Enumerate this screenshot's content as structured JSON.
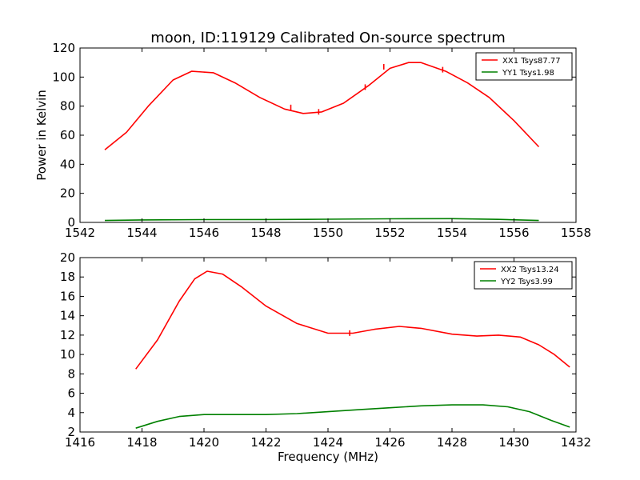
{
  "chart_data": [
    {
      "type": "line",
      "title": "moon, ID:119129 Calibrated On-source spectrum",
      "xlabel": "",
      "ylabel": "Power in Kelvin",
      "xlim": [
        1542,
        1558
      ],
      "ylim": [
        0,
        120
      ],
      "xticks": [
        "1542",
        "1544",
        "1546",
        "1548",
        "1550",
        "1552",
        "1554",
        "1556",
        "1558"
      ],
      "yticks": [
        "0",
        "20",
        "40",
        "60",
        "80",
        "100",
        "120"
      ],
      "grid": false,
      "legend_position": "top-right",
      "series": [
        {
          "name": "XX1 Tsys87.77",
          "color": "#ff0000",
          "x": [
            1542.8,
            1543.5,
            1544.2,
            1545.0,
            1545.6,
            1546.3,
            1547.0,
            1547.8,
            1548.6,
            1549.2,
            1549.8,
            1550.5,
            1551.3,
            1552.0,
            1552.6,
            1553.0,
            1553.8,
            1554.5,
            1555.2,
            1556.0,
            1556.8
          ],
          "y": [
            50,
            62,
            80,
            98,
            104,
            103,
            96,
            86,
            78,
            75,
            76,
            82,
            94,
            106,
            110,
            110,
            104,
            96,
            86,
            70,
            52
          ],
          "spikes": [
            {
              "x": 1548.8,
              "y": 81
            },
            {
              "x": 1549.7,
              "y": 78
            },
            {
              "x": 1551.2,
              "y": 95
            },
            {
              "x": 1551.8,
              "y": 109
            },
            {
              "x": 1553.7,
              "y": 107
            }
          ]
        },
        {
          "name": "YY1 Tsys1.98",
          "color": "#008000",
          "x": [
            1542.8,
            1544.0,
            1546.0,
            1548.0,
            1550.0,
            1552.0,
            1554.0,
            1555.5,
            1556.8
          ],
          "y": [
            1.3,
            1.7,
            1.9,
            2.0,
            2.2,
            2.5,
            2.6,
            2.1,
            1.3
          ]
        }
      ]
    },
    {
      "type": "line",
      "title": "",
      "xlabel": "Frequency (MHz)",
      "ylabel": "",
      "xlim": [
        1416,
        1432
      ],
      "ylim": [
        2,
        20
      ],
      "xticks": [
        "1416",
        "1418",
        "1420",
        "1422",
        "1424",
        "1426",
        "1428",
        "1430",
        "1432"
      ],
      "yticks": [
        "2",
        "4",
        "6",
        "8",
        "10",
        "12",
        "14",
        "16",
        "18",
        "20"
      ],
      "grid": false,
      "legend_position": "top-right",
      "series": [
        {
          "name": "XX2 Tsys13.24",
          "color": "#ff0000",
          "x": [
            1417.8,
            1418.5,
            1419.2,
            1419.7,
            1420.1,
            1420.6,
            1421.2,
            1422.0,
            1423.0,
            1424.0,
            1424.8,
            1425.5,
            1426.3,
            1427.0,
            1428.0,
            1428.8,
            1429.5,
            1430.2,
            1430.8,
            1431.3,
            1431.8
          ],
          "y": [
            8.5,
            11.5,
            15.5,
            17.8,
            18.6,
            18.3,
            17.0,
            15.0,
            13.2,
            12.2,
            12.2,
            12.6,
            12.9,
            12.7,
            12.1,
            11.9,
            12.0,
            11.8,
            11.0,
            10.0,
            8.7
          ],
          "spikes": [
            {
              "x": 1424.7,
              "y": 12.5
            }
          ]
        },
        {
          "name": "YY2 Tsys3.99",
          "color": "#008000",
          "x": [
            1417.8,
            1418.5,
            1419.2,
            1420.0,
            1421.0,
            1422.0,
            1423.0,
            1424.0,
            1425.0,
            1426.0,
            1427.0,
            1428.0,
            1429.0,
            1429.8,
            1430.5,
            1431.2,
            1431.8
          ],
          "y": [
            2.4,
            3.1,
            3.6,
            3.8,
            3.8,
            3.8,
            3.9,
            4.1,
            4.3,
            4.5,
            4.7,
            4.8,
            4.8,
            4.6,
            4.1,
            3.2,
            2.5
          ]
        }
      ]
    }
  ]
}
